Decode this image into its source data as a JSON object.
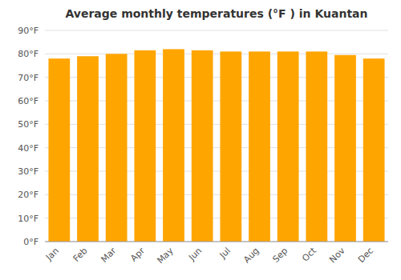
{
  "chart_data": {
    "type": "bar",
    "title": "Average monthly temperatures (°F ) in Kuantan",
    "categories": [
      "Jan",
      "Feb",
      "Mar",
      "Apr",
      "May",
      "Jun",
      "Jul",
      "Aug",
      "Sep",
      "Oct",
      "Nov",
      "Dec"
    ],
    "values": [
      78,
      79,
      80,
      81.5,
      82,
      81.5,
      81,
      81,
      81,
      81,
      79.5,
      78
    ],
    "color": "#FFA500",
    "ylim": [
      0,
      90
    ],
    "yticks": [
      {
        "value": 0,
        "label": "0°F"
      },
      {
        "value": 10,
        "label": "10°F"
      },
      {
        "value": 20,
        "label": "20°F"
      },
      {
        "value": 30,
        "label": "30°F"
      },
      {
        "value": 40,
        "label": "40°F"
      },
      {
        "value": 50,
        "label": "50°F"
      },
      {
        "value": 60,
        "label": "60°F"
      },
      {
        "value": 70,
        "label": "70°F"
      },
      {
        "value": 80,
        "label": "80°F"
      },
      {
        "value": 90,
        "label": "90°F"
      }
    ],
    "grid": true
  }
}
